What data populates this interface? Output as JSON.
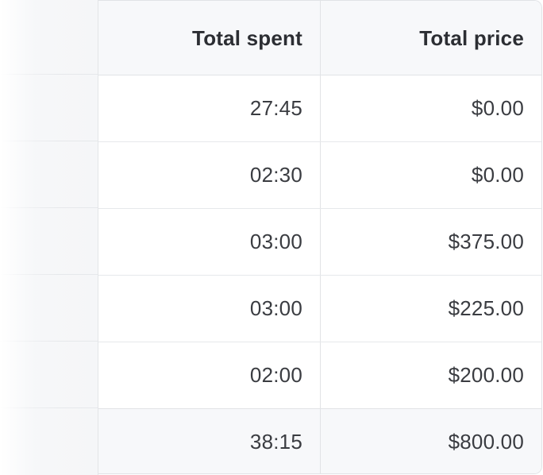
{
  "table": {
    "columns": [
      "Total spent",
      "Total price"
    ],
    "rows": [
      {
        "spent": "27:45",
        "price": "$0.00"
      },
      {
        "spent": "02:30",
        "price": "$0.00"
      },
      {
        "spent": "03:00",
        "price": "$375.00"
      },
      {
        "spent": "03:00",
        "price": "$225.00"
      },
      {
        "spent": "02:00",
        "price": "$200.00"
      }
    ],
    "totals": {
      "spent": "38:15",
      "price": "$800.00"
    }
  },
  "colors": {
    "header_bg": "#f7f8fa",
    "border": "#e1e3e6",
    "text": "#2f3136"
  }
}
